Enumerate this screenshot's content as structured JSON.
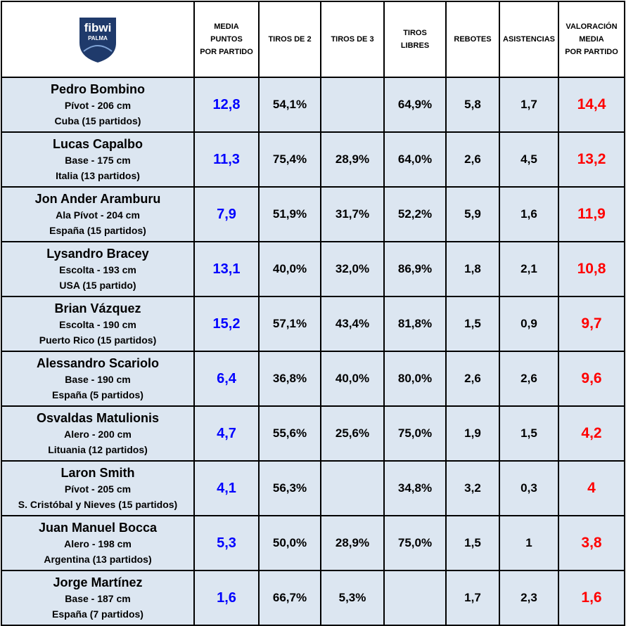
{
  "header": {
    "logo": {
      "brand": "fibwi",
      "sub": "PALMA"
    },
    "columns": [
      "MEDIA\nPUNTOS\nPOR PARTIDO",
      "TIROS DE 2",
      "TIROS DE 3",
      "TIROS\nLIBRES",
      "REBOTES",
      "ASISTENCIAS",
      "VALORACIÓN\nMEDIA\nPOR PARTIDO"
    ]
  },
  "table": {
    "rows": [
      {
        "name": "Pedro Bombino",
        "position": "Pívot - 206 cm",
        "country": "Cuba (15 partidos)",
        "stats": [
          "12,8",
          "54,1%",
          null,
          "64,9%",
          "5,8",
          "1,7",
          "14,4"
        ]
      },
      {
        "name": "Lucas Capalbo",
        "position": "Base - 175 cm",
        "country": "Italia (13 partidos)",
        "stats": [
          "11,3",
          "75,4%",
          "28,9%",
          "64,0%",
          "2,6",
          "4,5",
          "13,2"
        ]
      },
      {
        "name": "Jon Ander Aramburu",
        "position": "Ala Pívot - 204 cm",
        "country": "España (15 partidos)",
        "stats": [
          "7,9",
          "51,9%",
          "31,7%",
          "52,2%",
          "5,9",
          "1,6",
          "11,9"
        ]
      },
      {
        "name": "Lysandro Bracey",
        "position": "Escolta - 193 cm",
        "country": "USA (15 partido)",
        "stats": [
          "13,1",
          "40,0%",
          "32,0%",
          "86,9%",
          "1,8",
          "2,1",
          "10,8"
        ]
      },
      {
        "name": "Brian Vázquez",
        "position": "Escolta - 190 cm",
        "country": "Puerto Rico (15 partidos)",
        "stats": [
          "15,2",
          "57,1%",
          "43,4%",
          "81,8%",
          "1,5",
          "0,9",
          "9,7"
        ]
      },
      {
        "name": "Alessandro Scariolo",
        "position": "Base - 190 cm",
        "country": "España (5 partidos)",
        "stats": [
          "6,4",
          "36,8%",
          "40,0%",
          "80,0%",
          "2,6",
          "2,6",
          "9,6"
        ]
      },
      {
        "name": "Osvaldas Matulionis",
        "position": "Alero - 200 cm",
        "country": "Lituania (12 partidos)",
        "stats": [
          "4,7",
          "55,6%",
          "25,6%",
          "75,0%",
          "1,9",
          "1,5",
          "4,2"
        ]
      },
      {
        "name": "Laron Smith",
        "position": "Pívot - 205 cm",
        "country": "S. Cristóbal y Nieves (15 partidos)",
        "stats": [
          "4,1",
          "56,3%",
          null,
          "34,8%",
          "3,2",
          "0,3",
          "4"
        ]
      },
      {
        "name": "Juan Manuel Bocca",
        "position": "Alero - 198 cm",
        "country": "Argentina (13 partidos)",
        "stats": [
          "5,3",
          "50,0%",
          "28,9%",
          "75,0%",
          "1,5",
          "1",
          "3,8"
        ]
      },
      {
        "name": "Jorge Martínez",
        "position": "Base - 187 cm",
        "country": "España (7 partidos)",
        "stats": [
          "1,6",
          "66,7%",
          "5,3%",
          null,
          "1,7",
          "2,3",
          "1,6"
        ]
      }
    ]
  }
}
